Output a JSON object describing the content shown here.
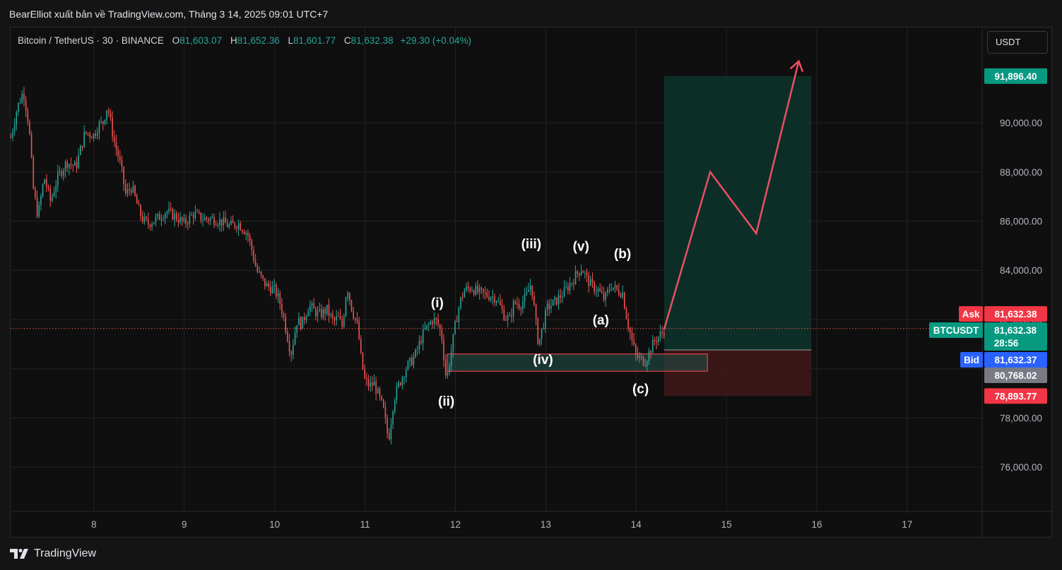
{
  "header": {
    "publisher_line": "BearElliot xuất bản về TradingView.com, Tháng 3 14, 2025 09:01 UTC+7"
  },
  "legend": {
    "symbol": "Bitcoin / TetherUS · 30 · BINANCE",
    "open_label": "O",
    "open": "81,603.07",
    "high_label": "H",
    "high": "81,652.36",
    "low_label": "L",
    "low": "81,601.77",
    "close_label": "C",
    "close": "81,632.38",
    "change": "+29.30 (+0.04%)"
  },
  "currency_button": "USDT",
  "footer": {
    "brand": "TradingView"
  },
  "colors": {
    "up": "#26a69a",
    "down": "#ef5350",
    "target": "#089981",
    "stop": "#f23645",
    "bid": "#2962ff",
    "grey_label": "#787b86",
    "projection": "#e85062"
  },
  "price_labels": {
    "target": "91,896.40",
    "ask_tag": "Ask",
    "ask": "81,632.38",
    "symbol_tag": "BTCUSDT",
    "last": "81,632.38",
    "countdown": "28:56",
    "bid_tag": "Bid",
    "bid": "81,632.37",
    "entry": "80,768.02",
    "stop": "78,893.77"
  },
  "chart_data": {
    "type": "candlestick",
    "symbol": "Bitcoin / TetherUS",
    "interval": "30",
    "exchange": "BINANCE",
    "x_ticks": [
      "8",
      "9",
      "10",
      "11",
      "12",
      "13",
      "14",
      "15",
      "16",
      "17"
    ],
    "y_ticks": [
      "76,000.00",
      "78,000.00",
      "80,000.00",
      "82,000.00",
      "84,000.00",
      "86,000.00",
      "88,000.00",
      "90,000.00"
    ],
    "y_tick_values": [
      76000,
      78000,
      80000,
      82000,
      84000,
      86000,
      88000,
      90000
    ],
    "x_range_days": [
      7.07,
      17.83
    ],
    "y_range": [
      74200,
      93900
    ],
    "grid": true,
    "last_price": 81632.38,
    "price_path": [
      [
        7.08,
        89400
      ],
      [
        7.15,
        90600
      ],
      [
        7.22,
        91300
      ],
      [
        7.28,
        89900
      ],
      [
        7.33,
        87300
      ],
      [
        7.38,
        86200
      ],
      [
        7.45,
        87800
      ],
      [
        7.52,
        86800
      ],
      [
        7.6,
        87800
      ],
      [
        7.7,
        88400
      ],
      [
        7.8,
        88200
      ],
      [
        7.9,
        89600
      ],
      [
        8.0,
        89500
      ],
      [
        8.05,
        89900
      ],
      [
        8.1,
        90000
      ],
      [
        8.15,
        90700
      ],
      [
        8.22,
        89300
      ],
      [
        8.3,
        88200
      ],
      [
        8.35,
        87100
      ],
      [
        8.42,
        87400
      ],
      [
        8.5,
        86400
      ],
      [
        8.55,
        86000
      ],
      [
        8.6,
        85900
      ],
      [
        8.7,
        86100
      ],
      [
        8.8,
        86400
      ],
      [
        8.9,
        86200
      ],
      [
        9.0,
        85900
      ],
      [
        9.1,
        86300
      ],
      [
        9.2,
        86100
      ],
      [
        9.3,
        86100
      ],
      [
        9.4,
        86000
      ],
      [
        9.5,
        85800
      ],
      [
        9.6,
        85900
      ],
      [
        9.7,
        85500
      ],
      [
        9.75,
        84800
      ],
      [
        9.8,
        84000
      ],
      [
        9.85,
        83700
      ],
      [
        9.9,
        83400
      ],
      [
        10.0,
        83200
      ],
      [
        10.05,
        82800
      ],
      [
        10.1,
        82100
      ],
      [
        10.18,
        80600
      ],
      [
        10.25,
        82000
      ],
      [
        10.3,
        81800
      ],
      [
        10.38,
        82600
      ],
      [
        10.45,
        82300
      ],
      [
        10.5,
        82200
      ],
      [
        10.58,
        82400
      ],
      [
        10.65,
        81900
      ],
      [
        10.7,
        82100
      ],
      [
        10.75,
        81700
      ],
      [
        10.8,
        83400
      ],
      [
        10.85,
        82500
      ],
      [
        10.92,
        81700
      ],
      [
        10.96,
        80300
      ],
      [
        11.0,
        79500
      ],
      [
        11.05,
        79300
      ],
      [
        11.1,
        79400
      ],
      [
        11.15,
        78900
      ],
      [
        11.2,
        78400
      ],
      [
        11.26,
        77100
      ],
      [
        11.32,
        78800
      ],
      [
        11.38,
        79400
      ],
      [
        11.45,
        80000
      ],
      [
        11.55,
        80500
      ],
      [
        11.65,
        81500
      ],
      [
        11.75,
        82000
      ],
      [
        11.8,
        81900
      ],
      [
        11.85,
        81300
      ],
      [
        11.9,
        79500
      ],
      [
        11.95,
        80600
      ],
      [
        12.0,
        81800
      ],
      [
        12.05,
        82700
      ],
      [
        12.1,
        83200
      ],
      [
        12.18,
        83300
      ],
      [
        12.25,
        83100
      ],
      [
        12.35,
        83000
      ],
      [
        12.45,
        82900
      ],
      [
        12.5,
        82500
      ],
      [
        12.55,
        82100
      ],
      [
        12.6,
        82000
      ],
      [
        12.65,
        82700
      ],
      [
        12.72,
        82600
      ],
      [
        12.78,
        82900
      ],
      [
        12.84,
        83500
      ],
      [
        12.88,
        82200
      ],
      [
        12.92,
        81000
      ],
      [
        12.97,
        81800
      ],
      [
        13.02,
        82500
      ],
      [
        13.1,
        82700
      ],
      [
        13.2,
        83100
      ],
      [
        13.3,
        83600
      ],
      [
        13.35,
        83900
      ],
      [
        13.4,
        84100
      ],
      [
        13.45,
        83700
      ],
      [
        13.5,
        83400
      ],
      [
        13.58,
        83200
      ],
      [
        13.65,
        82800
      ],
      [
        13.72,
        83400
      ],
      [
        13.78,
        83200
      ],
      [
        13.85,
        83100
      ],
      [
        13.9,
        82000
      ],
      [
        13.95,
        81200
      ],
      [
        14.0,
        80500
      ],
      [
        14.05,
        80400
      ],
      [
        14.1,
        80300
      ],
      [
        14.15,
        80700
      ],
      [
        14.2,
        81100
      ],
      [
        14.27,
        81400
      ],
      [
        14.33,
        81630
      ]
    ],
    "wave_labels": [
      {
        "text": "(i)",
        "x": 11.8,
        "y": 82500
      },
      {
        "text": "(ii)",
        "x": 11.9,
        "y": 78500
      },
      {
        "text": "(iii)",
        "x": 12.84,
        "y": 84900
      },
      {
        "text": "(iv)",
        "x": 12.97,
        "y": 80200
      },
      {
        "text": "(v)",
        "x": 13.39,
        "y": 84800
      },
      {
        "text": "(a)",
        "x": 13.61,
        "y": 81800
      },
      {
        "text": "(b)",
        "x": 13.85,
        "y": 84500
      },
      {
        "text": "(c)",
        "x": 14.05,
        "y": 79000
      }
    ],
    "support_zone": {
      "x0": 11.91,
      "x1": 14.79,
      "y0": 79900,
      "y1": 80600
    },
    "position": {
      "x0": 14.31,
      "x1": 15.94,
      "entry": 80768.02,
      "target": 91896.4,
      "stop": 78893.77
    },
    "projection": [
      [
        14.31,
        81600
      ],
      [
        14.82,
        88000
      ],
      [
        15.33,
        85500
      ],
      [
        15.8,
        92500
      ]
    ]
  }
}
